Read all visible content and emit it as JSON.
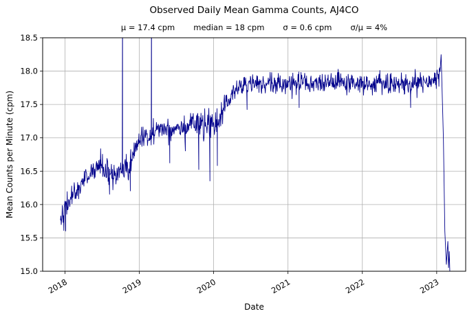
{
  "page": {
    "background": "#ffffff"
  },
  "chart_data": {
    "type": "line",
    "title": "Observed Daily Mean Gamma Counts, AJ4CO",
    "stats": [
      "μ = 17.4 cpm",
      "median = 18 cpm",
      "σ = 0.6 cpm",
      "σ/μ = 4%"
    ],
    "xlabel": "Date",
    "ylabel": "Mean Counts per Minute (cpm)",
    "xlim": [
      2017.7,
      2023.39
    ],
    "ylim": [
      15.0,
      18.5
    ],
    "x_ticks": [
      2018,
      2019,
      2020,
      2021,
      2022,
      2023
    ],
    "y_ticks": [
      15.0,
      15.5,
      16.0,
      16.5,
      17.0,
      17.5,
      18.0,
      18.5
    ],
    "grid": true,
    "legend": "none",
    "line_color": "#00008b",
    "grid_color": "#b0b0b0",
    "frame_color": "#000000",
    "sample_step_years": 0.005,
    "noise_seed": 42,
    "trend": [
      [
        2017.94,
        15.85,
        0.09
      ],
      [
        2018.0,
        15.92,
        0.09
      ],
      [
        2018.08,
        16.1,
        0.08
      ],
      [
        2018.16,
        16.22,
        0.08
      ],
      [
        2018.24,
        16.33,
        0.08
      ],
      [
        2018.32,
        16.45,
        0.08
      ],
      [
        2018.4,
        16.52,
        0.09
      ],
      [
        2018.48,
        16.6,
        0.1
      ],
      [
        2018.56,
        16.5,
        0.1
      ],
      [
        2018.62,
        16.42,
        0.1
      ],
      [
        2018.7,
        16.45,
        0.09
      ],
      [
        2018.78,
        16.5,
        0.1
      ],
      [
        2018.86,
        16.55,
        0.11
      ],
      [
        2018.94,
        16.8,
        0.09
      ],
      [
        2019.02,
        17.0,
        0.08
      ],
      [
        2019.12,
        17.05,
        0.08
      ],
      [
        2019.22,
        17.1,
        0.08
      ],
      [
        2019.32,
        17.15,
        0.08
      ],
      [
        2019.42,
        17.1,
        0.09
      ],
      [
        2019.52,
        17.2,
        0.08
      ],
      [
        2019.62,
        17.15,
        0.09
      ],
      [
        2019.72,
        17.25,
        0.08
      ],
      [
        2019.82,
        17.18,
        0.1
      ],
      [
        2019.92,
        17.15,
        0.1
      ],
      [
        2020.02,
        17.2,
        0.1
      ],
      [
        2020.12,
        17.4,
        0.09
      ],
      [
        2020.22,
        17.6,
        0.08
      ],
      [
        2020.32,
        17.75,
        0.08
      ],
      [
        2020.45,
        17.8,
        0.08
      ],
      [
        2020.7,
        17.8,
        0.08
      ],
      [
        2021.0,
        17.82,
        0.08
      ],
      [
        2021.3,
        17.8,
        0.08
      ],
      [
        2021.6,
        17.82,
        0.08
      ],
      [
        2021.9,
        17.8,
        0.08
      ],
      [
        2022.2,
        17.82,
        0.08
      ],
      [
        2022.5,
        17.8,
        0.08
      ],
      [
        2022.8,
        17.82,
        0.08
      ],
      [
        2023.0,
        17.85,
        0.08
      ],
      [
        2023.05,
        18.0,
        0.06
      ]
    ],
    "up_spikes": [
      [
        2018.775,
        19.5
      ],
      [
        2019.165,
        19.5
      ]
    ],
    "down_spikes": [
      [
        2018.01,
        15.6
      ],
      [
        2018.6,
        16.15
      ],
      [
        2018.88,
        16.2
      ],
      [
        2019.41,
        16.62
      ],
      [
        2019.62,
        16.8
      ],
      [
        2019.8,
        16.52
      ],
      [
        2019.95,
        16.35
      ],
      [
        2020.05,
        16.58
      ],
      [
        2020.45,
        17.42
      ],
      [
        2021.15,
        17.45
      ],
      [
        2022.65,
        17.45
      ]
    ],
    "tail": [
      [
        2023.06,
        18.25
      ],
      [
        2023.09,
        17.0
      ],
      [
        2023.11,
        15.6
      ],
      [
        2023.13,
        15.1
      ],
      [
        2023.15,
        15.45
      ],
      [
        2023.16,
        15.05
      ],
      [
        2023.17,
        15.3
      ],
      [
        2023.18,
        14.85
      ]
    ]
  }
}
